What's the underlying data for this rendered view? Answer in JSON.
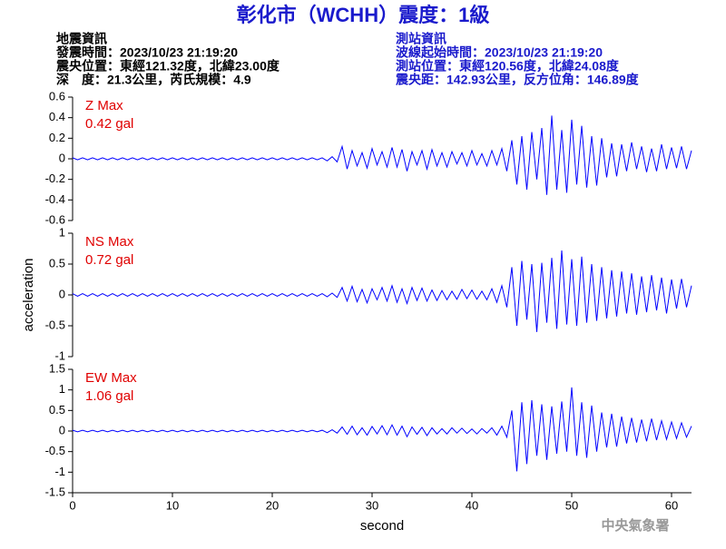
{
  "header": {
    "title": "彰化市（WCHH）震度：1級",
    "left": [
      "地震資訊",
      "發震時間：2023/10/23 21:19:20",
      "震央位置：東經121.32度，北緯23.00度",
      "深　度：21.3公里，芮氏規模：4.9"
    ],
    "right": [
      "測站資訊",
      "波線起始時間：2023/10/23 21:19:20",
      "測站位置：東經120.56度，北緯24.08度",
      "震央距：142.93公里，反方位角：146.89度"
    ]
  },
  "footer": "中央氣象署",
  "chart_data": [
    {
      "type": "line",
      "name": "Z Max",
      "max_label": "0.42 gal",
      "color": "#0000ff",
      "label_color": "#e00000",
      "xlim": [
        0,
        62
      ],
      "ylim": [
        -0.6,
        0.6
      ],
      "yticks": [
        0.6,
        0.4,
        0.2,
        0,
        -0.2,
        -0.4,
        -0.6
      ],
      "x": [
        0,
        0.5,
        1,
        1.5,
        2,
        2.5,
        3,
        3.5,
        4,
        4.5,
        5,
        5.5,
        6,
        6.5,
        7,
        7.5,
        8,
        8.5,
        9,
        9.5,
        10,
        10.5,
        11,
        11.5,
        12,
        12.5,
        13,
        13.5,
        14,
        14.5,
        15,
        15.5,
        16,
        16.5,
        17,
        17.5,
        18,
        18.5,
        19,
        19.5,
        20,
        20.5,
        21,
        21.5,
        22,
        22.5,
        23,
        23.5,
        24,
        24.5,
        25,
        25.5,
        26,
        26.5,
        27,
        27.5,
        28,
        28.5,
        29,
        29.5,
        30,
        30.5,
        31,
        31.5,
        32,
        32.5,
        33,
        33.5,
        34,
        34.5,
        35,
        35.5,
        36,
        36.5,
        37,
        37.5,
        38,
        38.5,
        39,
        39.5,
        40,
        40.5,
        41,
        41.5,
        42,
        42.5,
        43,
        43.5,
        44,
        44.5,
        45,
        45.5,
        46,
        46.5,
        47,
        47.5,
        48,
        48.5,
        49,
        49.5,
        50,
        50.5,
        51,
        51.5,
        52,
        52.5,
        53,
        53.5,
        54,
        54.5,
        55,
        55.5,
        56,
        56.5,
        57,
        57.5,
        58,
        58.5,
        59,
        59.5,
        60,
        60.5,
        61,
        61.5,
        62
      ],
      "values": [
        0.01,
        -0.01,
        0.01,
        -0.01,
        0.01,
        -0.01,
        0.01,
        -0.01,
        0.01,
        -0.01,
        0.01,
        -0.01,
        0.01,
        -0.01,
        0.01,
        -0.01,
        0.01,
        -0.01,
        0.01,
        -0.01,
        0.01,
        -0.01,
        0.01,
        -0.01,
        0.01,
        -0.01,
        0.01,
        -0.01,
        0.01,
        -0.01,
        0.01,
        -0.01,
        0.01,
        -0.01,
        0.01,
        -0.01,
        0.01,
        -0.01,
        0.01,
        -0.01,
        0.01,
        -0.01,
        0.01,
        -0.01,
        0.01,
        -0.01,
        0.01,
        -0.01,
        0.01,
        -0.01,
        0.01,
        -0.02,
        0.02,
        -0.03,
        0.12,
        -0.1,
        0.08,
        -0.07,
        0.06,
        -0.09,
        0.1,
        -0.06,
        0.07,
        -0.08,
        0.11,
        -0.08,
        0.09,
        -0.12,
        0.07,
        -0.06,
        0.08,
        -0.1,
        0.09,
        -0.07,
        0.06,
        -0.08,
        0.07,
        -0.05,
        0.06,
        -0.07,
        0.08,
        -0.06,
        0.05,
        -0.07,
        0.08,
        -0.06,
        0.1,
        -0.12,
        0.18,
        -0.25,
        0.22,
        -0.3,
        0.26,
        -0.2,
        0.3,
        -0.35,
        0.42,
        -0.3,
        0.28,
        -0.33,
        0.38,
        -0.25,
        0.32,
        -0.28,
        0.22,
        -0.26,
        0.2,
        -0.18,
        0.15,
        -0.17,
        0.14,
        -0.12,
        0.16,
        -0.1,
        0.12,
        -0.13,
        0.1,
        -0.12,
        0.14,
        -0.1,
        0.11,
        -0.09,
        0.12,
        -0.1,
        0.08
      ]
    },
    {
      "type": "line",
      "name": "NS Max",
      "max_label": "0.72 gal",
      "color": "#0000ff",
      "label_color": "#e00000",
      "y_label": "acceleration",
      "xlim": [
        0,
        62
      ],
      "ylim": [
        -1,
        1
      ],
      "yticks": [
        1,
        0.5,
        0,
        -0.5,
        -1
      ],
      "x": [
        0,
        0.5,
        1,
        1.5,
        2,
        2.5,
        3,
        3.5,
        4,
        4.5,
        5,
        5.5,
        6,
        6.5,
        7,
        7.5,
        8,
        8.5,
        9,
        9.5,
        10,
        10.5,
        11,
        11.5,
        12,
        12.5,
        13,
        13.5,
        14,
        14.5,
        15,
        15.5,
        16,
        16.5,
        17,
        17.5,
        18,
        18.5,
        19,
        19.5,
        20,
        20.5,
        21,
        21.5,
        22,
        22.5,
        23,
        23.5,
        24,
        24.5,
        25,
        25.5,
        26,
        26.5,
        27,
        27.5,
        28,
        28.5,
        29,
        29.5,
        30,
        30.5,
        31,
        31.5,
        32,
        32.5,
        33,
        33.5,
        34,
        34.5,
        35,
        35.5,
        36,
        36.5,
        37,
        37.5,
        38,
        38.5,
        39,
        39.5,
        40,
        40.5,
        41,
        41.5,
        42,
        42.5,
        43,
        43.5,
        44,
        44.5,
        45,
        45.5,
        46,
        46.5,
        47,
        47.5,
        48,
        48.5,
        49,
        49.5,
        50,
        50.5,
        51,
        51.5,
        52,
        52.5,
        53,
        53.5,
        54,
        54.5,
        55,
        55.5,
        56,
        56.5,
        57,
        57.5,
        58,
        58.5,
        59,
        59.5,
        60,
        60.5,
        61,
        61.5,
        62
      ],
      "values": [
        0.02,
        -0.02,
        0.02,
        -0.02,
        0.02,
        -0.02,
        0.02,
        -0.02,
        0.02,
        -0.02,
        0.02,
        -0.02,
        0.02,
        -0.02,
        0.02,
        -0.02,
        0.02,
        -0.02,
        0.02,
        -0.02,
        0.02,
        -0.02,
        0.02,
        -0.02,
        0.02,
        -0.02,
        0.02,
        -0.02,
        0.02,
        -0.02,
        0.02,
        -0.02,
        0.02,
        -0.02,
        0.02,
        -0.02,
        0.02,
        -0.02,
        0.02,
        -0.02,
        0.02,
        -0.02,
        0.02,
        -0.02,
        0.02,
        -0.02,
        0.02,
        -0.02,
        0.02,
        -0.02,
        0.02,
        -0.03,
        0.03,
        -0.04,
        0.12,
        -0.1,
        0.14,
        -0.11,
        0.09,
        -0.13,
        0.1,
        -0.08,
        0.12,
        -0.1,
        0.15,
        -0.12,
        0.1,
        -0.14,
        0.12,
        -0.09,
        0.11,
        -0.1,
        0.08,
        -0.09,
        0.07,
        -0.08,
        0.06,
        -0.07,
        0.09,
        -0.06,
        0.08,
        -0.07,
        0.06,
        -0.08,
        0.1,
        -0.12,
        0.15,
        -0.2,
        0.45,
        -0.5,
        0.55,
        -0.4,
        0.5,
        -0.6,
        0.52,
        -0.45,
        0.6,
        -0.55,
        0.72,
        -0.48,
        0.58,
        -0.5,
        0.62,
        -0.45,
        0.5,
        -0.42,
        0.45,
        -0.38,
        0.4,
        -0.35,
        0.38,
        -0.3,
        0.35,
        -0.32,
        0.3,
        -0.28,
        0.32,
        -0.25,
        0.28,
        -0.3,
        0.25,
        -0.22,
        0.26,
        -0.2,
        0.15
      ]
    },
    {
      "type": "line",
      "name": "EW Max",
      "max_label": "1.06 gal",
      "color": "#0000ff",
      "label_color": "#e00000",
      "x_label": "second",
      "xlim": [
        0,
        62
      ],
      "ylim": [
        -1.5,
        1.5
      ],
      "yticks": [
        1.5,
        1,
        0.5,
        0,
        -0.5,
        -1,
        -1.5
      ],
      "xticks": [
        0,
        10,
        20,
        30,
        40,
        50,
        60
      ],
      "x": [
        0,
        0.5,
        1,
        1.5,
        2,
        2.5,
        3,
        3.5,
        4,
        4.5,
        5,
        5.5,
        6,
        6.5,
        7,
        7.5,
        8,
        8.5,
        9,
        9.5,
        10,
        10.5,
        11,
        11.5,
        12,
        12.5,
        13,
        13.5,
        14,
        14.5,
        15,
        15.5,
        16,
        16.5,
        17,
        17.5,
        18,
        18.5,
        19,
        19.5,
        20,
        20.5,
        21,
        21.5,
        22,
        22.5,
        23,
        23.5,
        24,
        24.5,
        25,
        25.5,
        26,
        26.5,
        27,
        27.5,
        28,
        28.5,
        29,
        29.5,
        30,
        30.5,
        31,
        31.5,
        32,
        32.5,
        33,
        33.5,
        34,
        34.5,
        35,
        35.5,
        36,
        36.5,
        37,
        37.5,
        38,
        38.5,
        39,
        39.5,
        40,
        40.5,
        41,
        41.5,
        42,
        42.5,
        43,
        43.5,
        44,
        44.5,
        45,
        45.5,
        46,
        46.5,
        47,
        47.5,
        48,
        48.5,
        49,
        49.5,
        50,
        50.5,
        51,
        51.5,
        52,
        52.5,
        53,
        53.5,
        54,
        54.5,
        55,
        55.5,
        56,
        56.5,
        57,
        57.5,
        58,
        58.5,
        59,
        59.5,
        60,
        60.5,
        61,
        61.5,
        62
      ],
      "values": [
        0.02,
        -0.02,
        0.02,
        -0.02,
        0.02,
        -0.02,
        0.02,
        -0.02,
        0.02,
        -0.02,
        0.02,
        -0.02,
        0.02,
        -0.02,
        0.02,
        -0.02,
        0.02,
        -0.02,
        0.02,
        -0.02,
        0.02,
        -0.02,
        0.02,
        -0.02,
        0.02,
        -0.02,
        0.02,
        -0.02,
        0.02,
        -0.02,
        0.02,
        -0.02,
        0.02,
        -0.02,
        0.02,
        -0.02,
        0.02,
        -0.02,
        0.02,
        -0.02,
        0.02,
        -0.02,
        0.02,
        -0.02,
        0.02,
        -0.02,
        0.02,
        -0.02,
        0.02,
        -0.02,
        0.02,
        -0.04,
        0.03,
        -0.05,
        0.1,
        -0.08,
        0.12,
        -0.09,
        0.08,
        -0.1,
        0.11,
        -0.07,
        0.13,
        -0.09,
        0.15,
        -0.1,
        0.12,
        -0.14,
        0.1,
        -0.08,
        0.09,
        -0.11,
        0.08,
        -0.07,
        0.06,
        -0.07,
        0.08,
        -0.05,
        0.07,
        -0.06,
        0.05,
        -0.07,
        0.06,
        -0.05,
        0.08,
        -0.1,
        0.12,
        -0.15,
        0.5,
        -0.98,
        0.7,
        -0.8,
        0.75,
        -0.6,
        0.65,
        -0.7,
        0.6,
        -0.55,
        0.72,
        -0.5,
        1.06,
        -0.6,
        0.7,
        -0.65,
        0.62,
        -0.5,
        0.45,
        -0.4,
        0.42,
        -0.38,
        0.35,
        -0.3,
        0.32,
        -0.28,
        0.28,
        -0.25,
        0.3,
        -0.22,
        0.25,
        -0.2,
        0.22,
        -0.18,
        0.2,
        -0.15,
        0.12
      ]
    }
  ]
}
